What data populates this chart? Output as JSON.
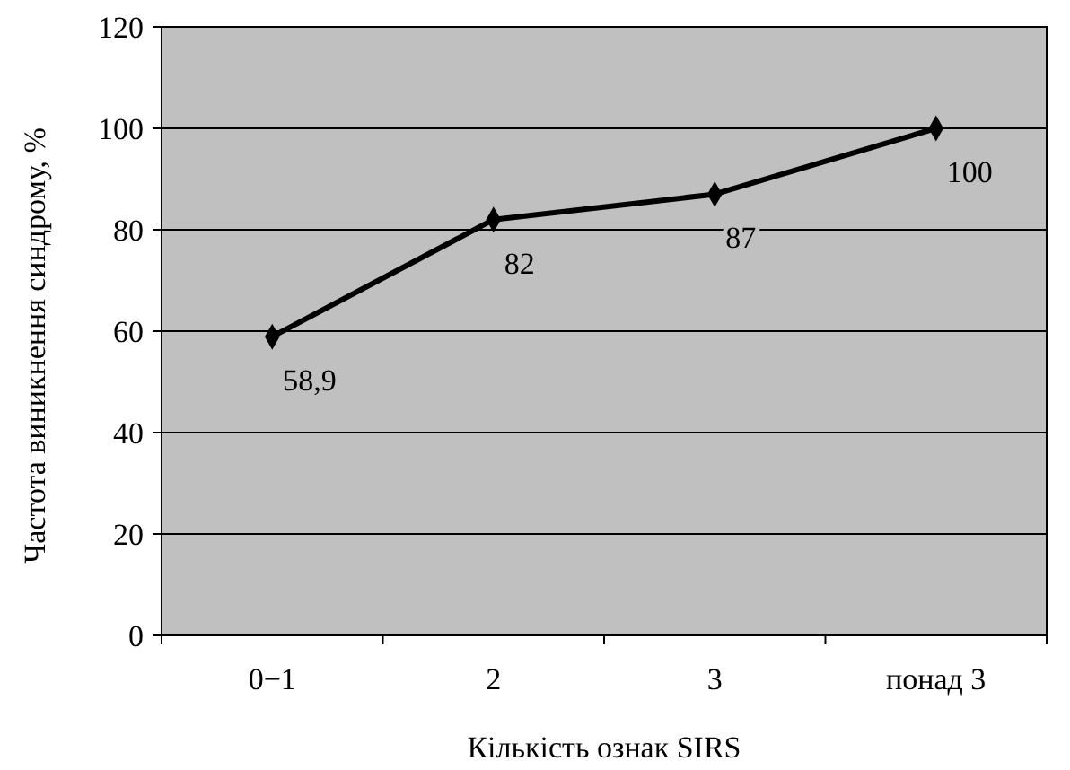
{
  "chart_data": {
    "type": "line",
    "xlabel": "Кількість ознак SIRS",
    "ylabel": "Частота виникнення синдрому, %",
    "categories": [
      "0−1",
      "2",
      "3",
      "понад 3"
    ],
    "series": [
      {
        "color": "#000000",
        "values": [
          58.9,
          82,
          87,
          100
        ],
        "value_labels": [
          "58,9",
          "82",
          "87",
          "100"
        ]
      }
    ],
    "ylim": [
      0,
      120
    ],
    "yticks": [
      0,
      20,
      40,
      60,
      80,
      100,
      120
    ],
    "grid": "y",
    "marker": "diamond",
    "line_style": "solid"
  }
}
